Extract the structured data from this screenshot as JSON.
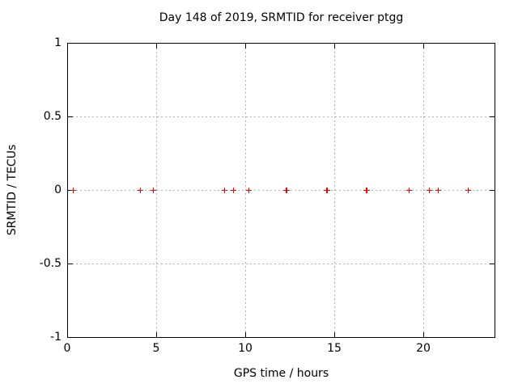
{
  "title": "Day 148 of 2019, SRMTID for receiver ptgg",
  "colors": {
    "marker": "#ff0000",
    "grid": "#b4b4b4",
    "axis": "#000000",
    "background": "#ffffff",
    "text": "#000000"
  },
  "chart_data": {
    "type": "scatter",
    "title": "Day 148 of 2019, SRMTID for receiver ptgg",
    "xlabel": "GPS time / hours",
    "ylabel": "SRMTID / TECUs",
    "xlim": [
      0,
      24
    ],
    "ylim": [
      -1,
      1
    ],
    "grid": true,
    "legend": false,
    "marker": "plus",
    "marker_size": 7,
    "marker_color": "#ff0000",
    "xticks": [
      {
        "value": 0,
        "label": "0"
      },
      {
        "value": 5,
        "label": "5"
      },
      {
        "value": 10,
        "label": "10"
      },
      {
        "value": 15,
        "label": "15"
      },
      {
        "value": 20,
        "label": "20"
      }
    ],
    "yticks": [
      {
        "value": -1,
        "label": "-1"
      },
      {
        "value": -0.5,
        "label": "-0.5"
      },
      {
        "value": 0,
        "label": "0"
      },
      {
        "value": 0.5,
        "label": "0.5"
      },
      {
        "value": 1,
        "label": "1"
      }
    ],
    "series": [
      {
        "name": "SRMTID",
        "points": [
          [
            0.3,
            0
          ],
          [
            4.1,
            0
          ],
          [
            4.8,
            0
          ],
          [
            8.8,
            0
          ],
          [
            9.3,
            0
          ],
          [
            10.2,
            0
          ],
          [
            12.25,
            0
          ],
          [
            12.3,
            0
          ],
          [
            14.55,
            0
          ],
          [
            14.6,
            0
          ],
          [
            16.75,
            0
          ],
          [
            16.8,
            0
          ],
          [
            19.2,
            0
          ],
          [
            20.3,
            0
          ],
          [
            20.8,
            0
          ],
          [
            22.5,
            0
          ]
        ]
      }
    ]
  }
}
